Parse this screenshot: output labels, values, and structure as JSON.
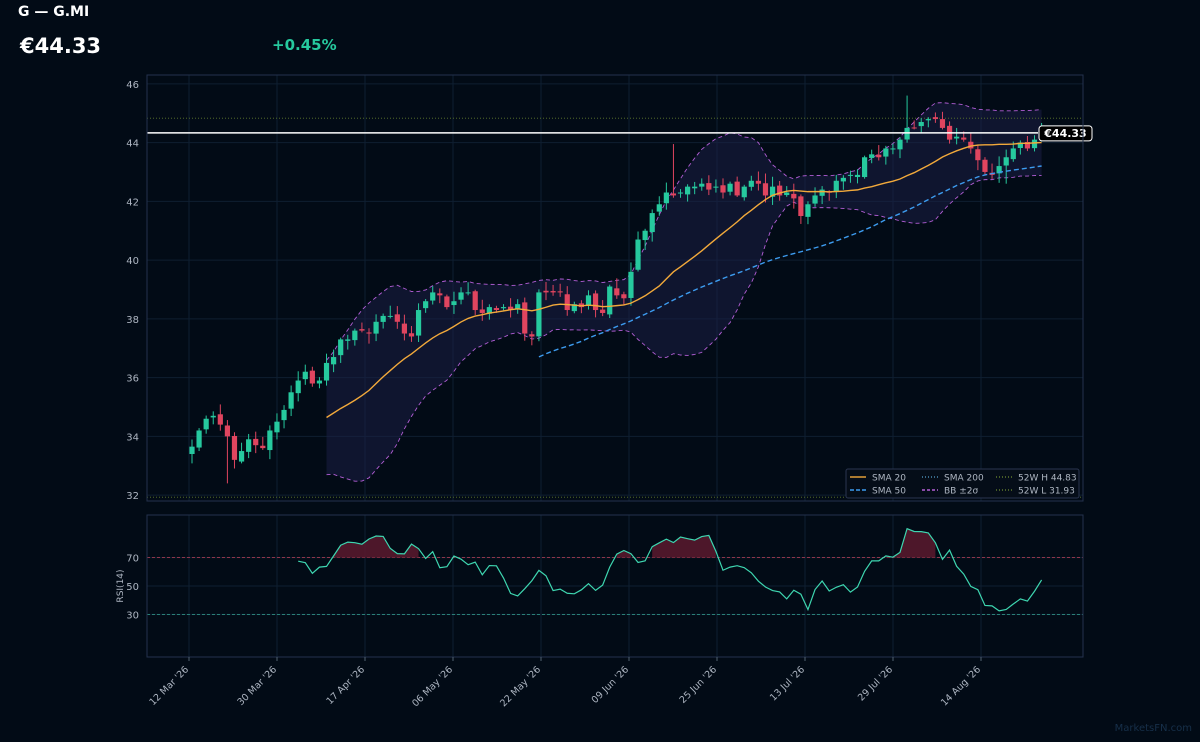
{
  "header": {
    "ticker": "G — G.MI",
    "price": "€44.33",
    "change": "+0.45%"
  },
  "watermark": "MarketsFN.com",
  "colors": {
    "background": "#020b16",
    "up": "#26c99e",
    "down": "#e0455f",
    "sma20": "#f2a93b",
    "sma50": "#3d9cf0",
    "bb": "#b35ed6",
    "rsi": "#3ed6b0"
  },
  "chart_data": [
    {
      "type": "candlestick",
      "title": "",
      "ylim": [
        31.8,
        46.3
      ],
      "yticks": [
        32,
        34,
        36,
        38,
        40,
        42,
        44,
        46
      ],
      "xticks": [
        "12 Mar '26",
        "30 Mar '26",
        "17 Apr '26",
        "06 May '26",
        "22 May '26",
        "09 Jun '26",
        "25 Jun '26",
        "13 Jul '26",
        "29 Jul '26",
        "14 Aug '26"
      ],
      "last_price_label": "€44.33",
      "last_price": 44.33,
      "week52_high": 44.83,
      "week52_low": 31.93,
      "grid": true,
      "legend_position": "bottom-right",
      "legend": [
        "SMA 20",
        "SMA 50",
        "SMA 200",
        "BB ±2σ",
        "52W H 44.83",
        "52W L 31.93"
      ],
      "close": [
        33.65,
        34.2,
        34.6,
        34.7,
        34.4,
        34.0,
        33.2,
        33.5,
        33.9,
        33.7,
        33.6,
        34.2,
        34.5,
        34.9,
        35.5,
        35.9,
        36.2,
        35.8,
        35.9,
        36.5,
        36.7,
        37.3,
        37.3,
        37.6,
        37.6,
        37.5,
        37.9,
        38.1,
        38.1,
        37.9,
        37.5,
        37.4,
        38.3,
        38.6,
        38.9,
        38.8,
        38.4,
        38.6,
        38.9,
        38.9,
        38.3,
        38.2,
        38.4,
        38.3,
        38.4,
        38.3,
        38.5,
        37.5,
        37.4,
        38.9,
        38.9,
        38.9,
        38.9,
        38.3,
        38.5,
        38.4,
        38.8,
        38.3,
        38.2,
        39.1,
        38.8,
        38.7,
        39.6,
        40.7,
        41.0,
        41.6,
        41.9,
        42.3,
        42.2,
        42.3,
        42.5,
        42.5,
        42.6,
        42.4,
        42.5,
        42.3,
        42.6,
        42.2,
        42.5,
        42.7,
        42.6,
        42.2,
        42.5,
        42.2,
        42.3,
        42.1,
        41.5,
        41.9,
        42.2,
        42.4,
        42.3,
        42.7,
        42.8,
        42.9,
        42.9,
        43.5,
        43.6,
        43.5,
        43.8,
        43.8,
        44.1,
        44.5,
        44.5,
        44.7,
        44.8,
        44.8,
        44.5,
        44.1,
        44.2,
        44.1,
        43.8,
        43.4,
        43.0,
        42.9,
        43.2,
        43.5,
        43.8,
        44.0,
        43.8,
        44.1,
        44.33
      ]
    },
    {
      "type": "line",
      "ylabel": "RSI(14)",
      "ylim": [
        0,
        100
      ],
      "yticks": [
        30,
        50,
        70
      ],
      "levels": [
        30,
        70
      ],
      "values": [
        null,
        null,
        null,
        null,
        null,
        null,
        null,
        null,
        null,
        null,
        null,
        null,
        null,
        null,
        null,
        67.5,
        66.4,
        58.9,
        63.3,
        63.8,
        71.2,
        78.7,
        80.9,
        80.5,
        79.4,
        83.1,
        85.2,
        84.9,
        76.5,
        72.8,
        72.6,
        79.5,
        76.3,
        69.4,
        74.2,
        62.9,
        63.6,
        71.1,
        68.9,
        65.0,
        66.8,
        57.9,
        64.4,
        64.2,
        55.6,
        44.8,
        43.0,
        48.1,
        53.7,
        61.0,
        57.2,
        46.8,
        47.8,
        44.9,
        44.5,
        47.3,
        51.6,
        46.9,
        50.6,
        63.3,
        72.5,
        75.0,
        72.7,
        66.6,
        67.7,
        77.7,
        80.4,
        83.0,
        80.6,
        84.5,
        83.3,
        82.3,
        84.8,
        85.6,
        74.4,
        61.1,
        63.3,
        64.3,
        62.9,
        59.3,
        53.4,
        49.3,
        46.8,
        45.8,
        40.9,
        47.0,
        44.2,
        33.4,
        47.5,
        53.5,
        46.5,
        49.1,
        50.9,
        45.7,
        49.3,
        60.4,
        67.7,
        67.7,
        71.2,
        70.3,
        73.7,
        90.4,
        88.4,
        88.3,
        87.4,
        80.4,
        68.8,
        75.3,
        63.9,
        58.4,
        49.7,
        47.4,
        36.3,
        36.0,
        32.5,
        33.5,
        37.3,
        40.9,
        39.4,
        46.3,
        54.3
      ]
    }
  ]
}
